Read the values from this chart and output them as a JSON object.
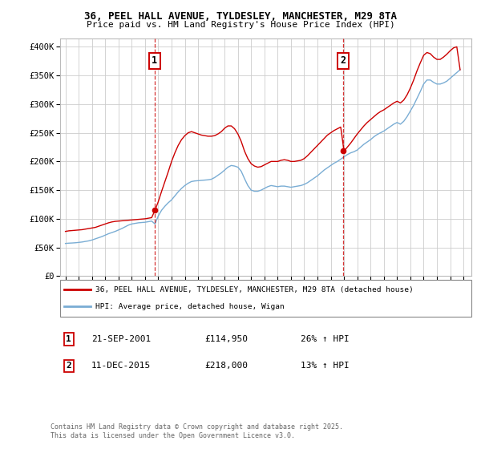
{
  "title_line1": "36, PEEL HALL AVENUE, TYLDESLEY, MANCHESTER, M29 8TA",
  "title_line2": "Price paid vs. HM Land Registry's House Price Index (HPI)",
  "ylabel_ticks": [
    "£0",
    "£50K",
    "£100K",
    "£150K",
    "£200K",
    "£250K",
    "£300K",
    "£350K",
    "£400K"
  ],
  "ytick_values": [
    0,
    50000,
    100000,
    150000,
    200000,
    250000,
    300000,
    350000,
    400000
  ],
  "ylim": [
    0,
    415000
  ],
  "xlim_start": 1994.6,
  "xlim_end": 2025.6,
  "xticks": [
    1995,
    1996,
    1997,
    1998,
    1999,
    2000,
    2001,
    2002,
    2003,
    2004,
    2005,
    2006,
    2007,
    2008,
    2009,
    2010,
    2011,
    2012,
    2013,
    2014,
    2015,
    2016,
    2017,
    2018,
    2019,
    2020,
    2021,
    2022,
    2023,
    2024,
    2025
  ],
  "color_price": "#cc0000",
  "color_hpi": "#7aadd4",
  "color_grid": "#cccccc",
  "purchase1_x": 2001.72,
  "purchase1_y": 114950,
  "purchase1_label": "1",
  "purchase1_date": "21-SEP-2001",
  "purchase1_price": "£114,950",
  "purchase1_hpi": "26% ↑ HPI",
  "purchase2_x": 2015.94,
  "purchase2_y": 218000,
  "purchase2_label": "2",
  "purchase2_date": "11-DEC-2015",
  "purchase2_price": "£218,000",
  "purchase2_hpi": "13% ↑ HPI",
  "legend_line1": "36, PEEL HALL AVENUE, TYLDESLEY, MANCHESTER, M29 8TA (detached house)",
  "legend_line2": "HPI: Average price, detached house, Wigan",
  "footnote": "Contains HM Land Registry data © Crown copyright and database right 2025.\nThis data is licensed under the Open Government Licence v3.0.",
  "hpi_data_x": [
    1995.0,
    1995.25,
    1995.5,
    1995.75,
    1996.0,
    1996.25,
    1996.5,
    1996.75,
    1997.0,
    1997.25,
    1997.5,
    1997.75,
    1998.0,
    1998.25,
    1998.5,
    1998.75,
    1999.0,
    1999.25,
    1999.5,
    1999.75,
    2000.0,
    2000.25,
    2000.5,
    2000.75,
    2001.0,
    2001.25,
    2001.5,
    2001.75,
    2002.0,
    2002.25,
    2002.5,
    2002.75,
    2003.0,
    2003.25,
    2003.5,
    2003.75,
    2004.0,
    2004.25,
    2004.5,
    2004.75,
    2005.0,
    2005.25,
    2005.5,
    2005.75,
    2006.0,
    2006.25,
    2006.5,
    2006.75,
    2007.0,
    2007.25,
    2007.5,
    2007.75,
    2008.0,
    2008.25,
    2008.5,
    2008.75,
    2009.0,
    2009.25,
    2009.5,
    2009.75,
    2010.0,
    2010.25,
    2010.5,
    2010.75,
    2011.0,
    2011.25,
    2011.5,
    2011.75,
    2012.0,
    2012.25,
    2012.5,
    2012.75,
    2013.0,
    2013.25,
    2013.5,
    2013.75,
    2014.0,
    2014.25,
    2014.5,
    2014.75,
    2015.0,
    2015.25,
    2015.5,
    2015.75,
    2016.0,
    2016.25,
    2016.5,
    2016.75,
    2017.0,
    2017.25,
    2017.5,
    2017.75,
    2018.0,
    2018.25,
    2018.5,
    2018.75,
    2019.0,
    2019.25,
    2019.5,
    2019.75,
    2020.0,
    2020.25,
    2020.5,
    2020.75,
    2021.0,
    2021.25,
    2021.5,
    2021.75,
    2022.0,
    2022.25,
    2022.5,
    2022.75,
    2023.0,
    2023.25,
    2023.5,
    2023.75,
    2024.0,
    2024.25,
    2024.5,
    2024.75
  ],
  "hpi_data_y": [
    57000,
    57500,
    57800,
    58200,
    58800,
    59500,
    60500,
    61500,
    63000,
    65000,
    67000,
    69000,
    71500,
    74000,
    76000,
    78000,
    80500,
    83000,
    86000,
    89000,
    91000,
    92000,
    93000,
    93500,
    94000,
    95000,
    96000,
    91000,
    105000,
    115000,
    122000,
    128000,
    133000,
    140000,
    147000,
    153000,
    158000,
    162000,
    165000,
    166000,
    166500,
    167000,
    167500,
    168000,
    169000,
    172000,
    176000,
    180000,
    185000,
    190000,
    193000,
    192000,
    190000,
    183000,
    170000,
    158000,
    150000,
    148000,
    148000,
    150000,
    153000,
    156000,
    158000,
    157000,
    156000,
    157000,
    157000,
    156000,
    155000,
    156000,
    157000,
    158000,
    160000,
    163000,
    167000,
    171000,
    175000,
    180000,
    185000,
    189000,
    193000,
    197000,
    200000,
    204000,
    208000,
    212000,
    215000,
    217000,
    220000,
    225000,
    230000,
    234000,
    238000,
    243000,
    247000,
    250000,
    253000,
    257000,
    261000,
    265000,
    268000,
    265000,
    270000,
    278000,
    288000,
    298000,
    310000,
    322000,
    335000,
    342000,
    342000,
    338000,
    335000,
    335000,
    337000,
    340000,
    345000,
    350000,
    355000,
    360000
  ],
  "price_data_x": [
    1995.0,
    1995.25,
    1995.5,
    1995.75,
    1996.0,
    1996.25,
    1996.5,
    1996.75,
    1997.0,
    1997.25,
    1997.5,
    1997.75,
    1998.0,
    1998.25,
    1998.5,
    1998.75,
    1999.0,
    1999.25,
    1999.5,
    1999.75,
    2000.0,
    2000.25,
    2000.5,
    2000.75,
    2001.0,
    2001.25,
    2001.5,
    2001.75,
    2002.0,
    2002.25,
    2002.5,
    2002.75,
    2003.0,
    2003.25,
    2003.5,
    2003.75,
    2004.0,
    2004.25,
    2004.5,
    2004.75,
    2005.0,
    2005.25,
    2005.5,
    2005.75,
    2006.0,
    2006.25,
    2006.5,
    2006.75,
    2007.0,
    2007.25,
    2007.5,
    2007.75,
    2008.0,
    2008.25,
    2008.5,
    2008.75,
    2009.0,
    2009.25,
    2009.5,
    2009.75,
    2010.0,
    2010.25,
    2010.5,
    2010.75,
    2011.0,
    2011.25,
    2011.5,
    2011.75,
    2012.0,
    2012.25,
    2012.5,
    2012.75,
    2013.0,
    2013.25,
    2013.5,
    2013.75,
    2014.0,
    2014.25,
    2014.5,
    2014.75,
    2015.0,
    2015.25,
    2015.5,
    2015.75,
    2016.0,
    2016.25,
    2016.5,
    2016.75,
    2017.0,
    2017.25,
    2017.5,
    2017.75,
    2018.0,
    2018.25,
    2018.5,
    2018.75,
    2019.0,
    2019.25,
    2019.5,
    2019.75,
    2020.0,
    2020.25,
    2020.5,
    2020.75,
    2021.0,
    2021.25,
    2021.5,
    2021.75,
    2022.0,
    2022.25,
    2022.5,
    2022.75,
    2023.0,
    2023.25,
    2023.5,
    2023.75,
    2024.0,
    2024.25,
    2024.5,
    2024.75
  ],
  "price_data_y": [
    78000,
    79000,
    79500,
    80000,
    80500,
    81000,
    82000,
    83000,
    84000,
    85000,
    87000,
    89000,
    91000,
    93000,
    94500,
    95500,
    96000,
    96500,
    97000,
    97500,
    98000,
    98500,
    99000,
    99500,
    100000,
    101000,
    102000,
    114950,
    130000,
    148000,
    165000,
    182000,
    200000,
    215000,
    228000,
    238000,
    245000,
    250000,
    252000,
    250000,
    248000,
    246000,
    245000,
    244000,
    244000,
    245000,
    248000,
    252000,
    258000,
    262000,
    262000,
    257000,
    248000,
    235000,
    218000,
    205000,
    196000,
    192000,
    190000,
    191000,
    194000,
    197000,
    200000,
    200000,
    200000,
    202000,
    203000,
    202000,
    200000,
    200000,
    201000,
    202000,
    205000,
    210000,
    216000,
    222000,
    228000,
    234000,
    240000,
    246000,
    250000,
    254000,
    257000,
    260000,
    218000,
    225000,
    232000,
    240000,
    248000,
    255000,
    262000,
    268000,
    273000,
    278000,
    283000,
    287000,
    290000,
    294000,
    298000,
    302000,
    305000,
    302000,
    307000,
    316000,
    328000,
    342000,
    358000,
    372000,
    385000,
    390000,
    388000,
    382000,
    378000,
    378000,
    382000,
    387000,
    393000,
    398000,
    400000,
    360000
  ]
}
